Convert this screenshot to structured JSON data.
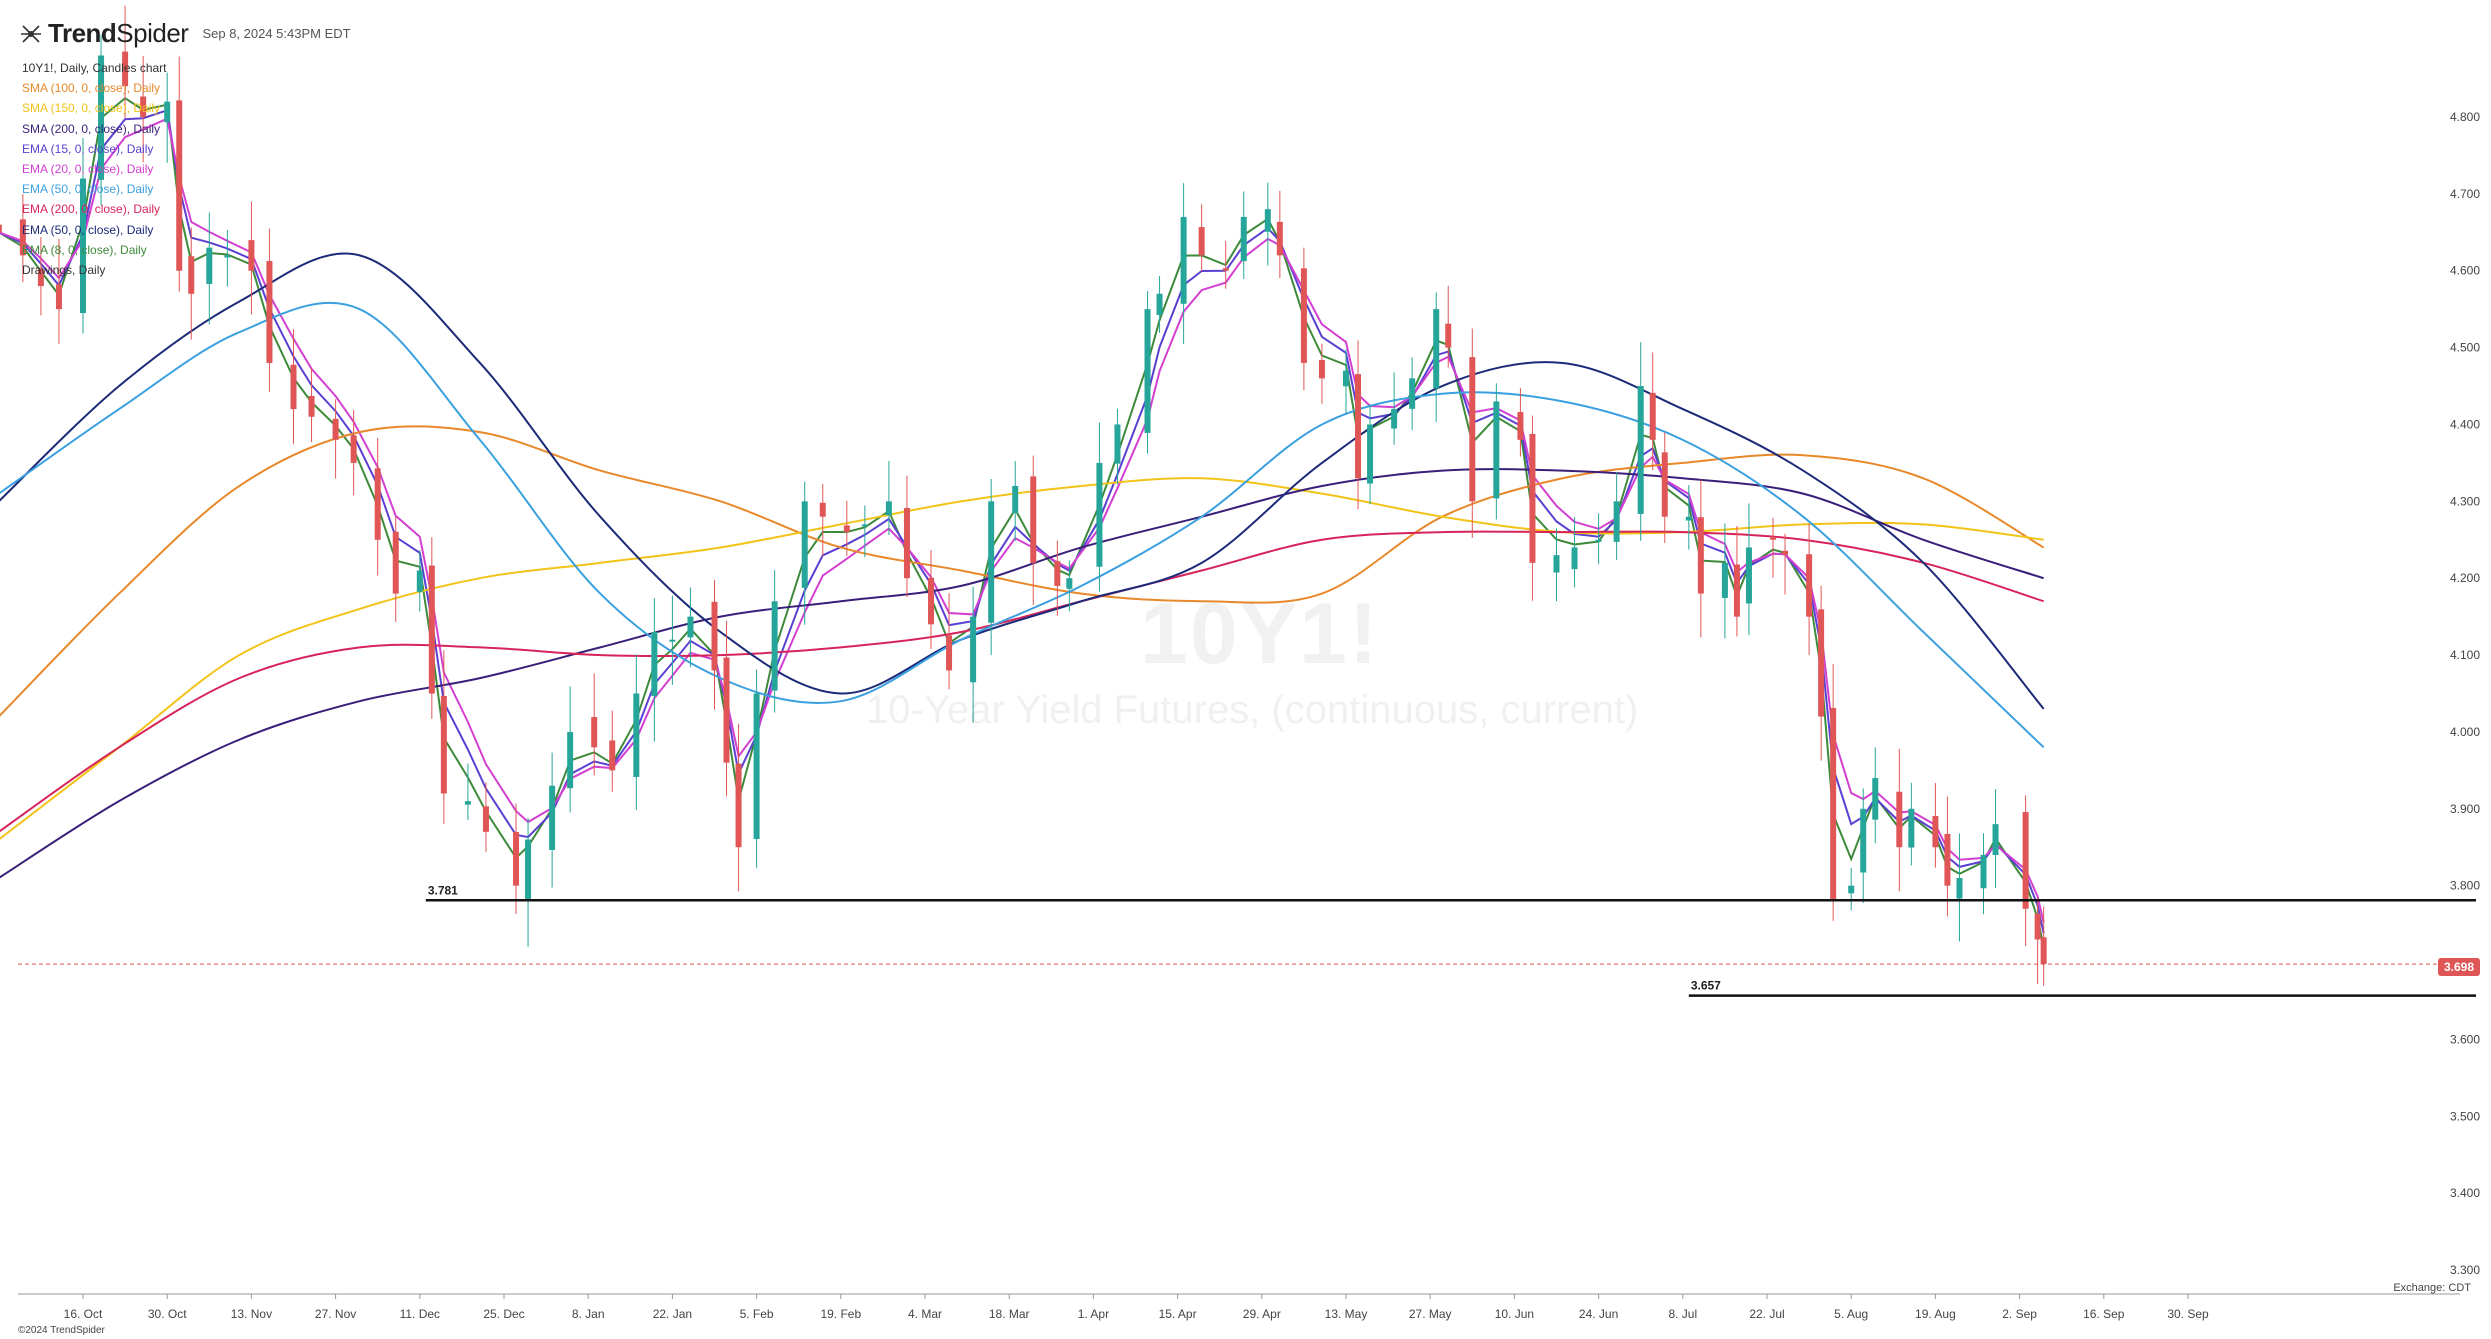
{
  "header": {
    "brand_bold": "Trend",
    "brand_thin": "Spider",
    "timestamp": "Sep 8, 2024 5:43PM EDT"
  },
  "legend": [
    {
      "text": "10Y1!, Daily, Candles chart",
      "color": "#333333"
    },
    {
      "text": "SMA (100, 0, close), Daily",
      "color": "#e8882a"
    },
    {
      "text": "SMA (150, 0, close), Daily",
      "color": "#f2c318"
    },
    {
      "text": "SMA (200, 0, close), Daily",
      "color": "#3a1f7a"
    },
    {
      "text": "EMA (15, 0, close), Daily",
      "color": "#5b3fd1"
    },
    {
      "text": "EMA (20, 0, close), Daily",
      "color": "#d23fd1"
    },
    {
      "text": "EMA (50, 0, close), Daily",
      "color": "#3aa0e0"
    },
    {
      "text": "EMA (200, 0, close), Daily",
      "color": "#d6245a"
    },
    {
      "text": "EMA (50, 0, close), Daily",
      "color": "#1c2a78"
    },
    {
      "text": "EMA (8, 0, close), Daily",
      "color": "#3d8a3a"
    },
    {
      "text": "Drawings, Daily",
      "color": "#333333"
    }
  ],
  "watermark": {
    "symbol": "10Y1!",
    "name": "10-Year Yield Futures, (continuous, current)"
  },
  "footer": {
    "exchange": "Exchange: CDT",
    "copyright": "©2024 TrendSpider"
  },
  "last_price": "3.698",
  "colors": {
    "up": "#26a69a",
    "down": "#e05656",
    "level_line": "#111111",
    "price_line": "#e05656"
  },
  "chart_data": {
    "type": "candlestick",
    "title": "10Y1!, Daily, Candles chart",
    "ylim": [
      3.3,
      4.85
    ],
    "y_ticks": [
      "3.300",
      "3.400",
      "3.500",
      "3.600",
      "3.700",
      "3.800",
      "3.900",
      "4.000",
      "4.100",
      "4.200",
      "4.300",
      "4.400",
      "4.500",
      "4.600",
      "4.700",
      "4.800"
    ],
    "x_ticks": [
      {
        "label": "16. Oct",
        "date": "2023-10-16"
      },
      {
        "label": "30. Oct",
        "date": "2023-10-30"
      },
      {
        "label": "13. Nov",
        "date": "2023-11-13"
      },
      {
        "label": "27. Nov",
        "date": "2023-11-27"
      },
      {
        "label": "11. Dec",
        "date": "2023-12-11"
      },
      {
        "label": "25. Dec",
        "date": "2023-12-25"
      },
      {
        "label": "8. Jan",
        "date": "2024-01-08"
      },
      {
        "label": "22. Jan",
        "date": "2024-01-22"
      },
      {
        "label": "5. Feb",
        "date": "2024-02-05"
      },
      {
        "label": "19. Feb",
        "date": "2024-02-19"
      },
      {
        "label": "4. Mar",
        "date": "2024-03-04"
      },
      {
        "label": "18. Mar",
        "date": "2024-03-18"
      },
      {
        "label": "1. Apr",
        "date": "2024-04-01"
      },
      {
        "label": "15. Apr",
        "date": "2024-04-15"
      },
      {
        "label": "29. Apr",
        "date": "2024-04-29"
      },
      {
        "label": "13. May",
        "date": "2024-05-13"
      },
      {
        "label": "27. May",
        "date": "2024-05-27"
      },
      {
        "label": "10. Jun",
        "date": "2024-06-10"
      },
      {
        "label": "24. Jun",
        "date": "2024-06-24"
      },
      {
        "label": "8. Jul",
        "date": "2024-07-08"
      },
      {
        "label": "22. Jul",
        "date": "2024-07-22"
      },
      {
        "label": "5. Aug",
        "date": "2024-08-05"
      },
      {
        "label": "19. Aug",
        "date": "2024-08-19"
      },
      {
        "label": "2. Sep",
        "date": "2024-09-02"
      },
      {
        "label": "16. Sep",
        "date": "2024-09-16"
      },
      {
        "label": "30. Sep",
        "date": "2024-09-30"
      }
    ],
    "horizontal_levels": [
      {
        "value": 3.781,
        "label": "3.781",
        "from": "2023-12-12"
      },
      {
        "value": 3.657,
        "label": "3.657",
        "from": "2024-07-09"
      }
    ],
    "closes": [
      [
        "2023-10-02",
        4.65
      ],
      [
        "2023-10-06",
        4.62
      ],
      [
        "2023-10-09",
        4.58
      ],
      [
        "2023-10-12",
        4.55
      ],
      [
        "2023-10-16",
        4.72
      ],
      [
        "2023-10-19",
        4.88
      ],
      [
        "2023-10-23",
        4.84
      ],
      [
        "2023-10-26",
        4.8
      ],
      [
        "2023-10-30",
        4.82
      ],
      [
        "2023-11-01",
        4.6
      ],
      [
        "2023-11-03",
        4.57
      ],
      [
        "2023-11-06",
        4.63
      ],
      [
        "2023-11-09",
        4.62
      ],
      [
        "2023-11-13",
        4.6
      ],
      [
        "2023-11-16",
        4.48
      ],
      [
        "2023-11-20",
        4.42
      ],
      [
        "2023-11-23",
        4.41
      ],
      [
        "2023-11-27",
        4.38
      ],
      [
        "2023-11-30",
        4.35
      ],
      [
        "2023-12-04",
        4.25
      ],
      [
        "2023-12-07",
        4.18
      ],
      [
        "2023-12-11",
        4.21
      ],
      [
        "2023-12-13",
        4.05
      ],
      [
        "2023-12-15",
        3.92
      ],
      [
        "2023-12-19",
        3.91
      ],
      [
        "2023-12-22",
        3.87
      ],
      [
        "2023-12-27",
        3.8
      ],
      [
        "2023-12-29",
        3.86
      ],
      [
        "2024-01-02",
        3.93
      ],
      [
        "2024-01-05",
        4.0
      ],
      [
        "2024-01-09",
        3.98
      ],
      [
        "2024-01-12",
        3.95
      ],
      [
        "2024-01-16",
        4.05
      ],
      [
        "2024-01-19",
        4.13
      ],
      [
        "2024-01-22",
        4.12
      ],
      [
        "2024-01-25",
        4.15
      ],
      [
        "2024-01-29",
        4.08
      ],
      [
        "2024-01-31",
        3.96
      ],
      [
        "2024-02-02",
        3.85
      ],
      [
        "2024-02-05",
        4.05
      ],
      [
        "2024-02-08",
        4.17
      ],
      [
        "2024-02-13",
        4.3
      ],
      [
        "2024-02-16",
        4.28
      ],
      [
        "2024-02-20",
        4.26
      ],
      [
        "2024-02-23",
        4.27
      ],
      [
        "2024-02-27",
        4.3
      ],
      [
        "2024-03-01",
        4.2
      ],
      [
        "2024-03-05",
        4.14
      ],
      [
        "2024-03-08",
        4.08
      ],
      [
        "2024-03-12",
        4.15
      ],
      [
        "2024-03-15",
        4.3
      ],
      [
        "2024-03-19",
        4.32
      ],
      [
        "2024-03-22",
        4.22
      ],
      [
        "2024-03-26",
        4.19
      ],
      [
        "2024-03-28",
        4.2
      ],
      [
        "2024-04-02",
        4.35
      ],
      [
        "2024-04-05",
        4.4
      ],
      [
        "2024-04-10",
        4.55
      ],
      [
        "2024-04-12",
        4.57
      ],
      [
        "2024-04-16",
        4.67
      ],
      [
        "2024-04-19",
        4.62
      ],
      [
        "2024-04-23",
        4.6
      ],
      [
        "2024-04-26",
        4.67
      ],
      [
        "2024-04-30",
        4.68
      ],
      [
        "2024-05-02",
        4.62
      ],
      [
        "2024-05-06",
        4.48
      ],
      [
        "2024-05-09",
        4.46
      ],
      [
        "2024-05-13",
        4.47
      ],
      [
        "2024-05-15",
        4.33
      ],
      [
        "2024-05-17",
        4.4
      ],
      [
        "2024-05-21",
        4.42
      ],
      [
        "2024-05-24",
        4.46
      ],
      [
        "2024-05-28",
        4.55
      ],
      [
        "2024-05-30",
        4.5
      ],
      [
        "2024-06-03",
        4.3
      ],
      [
        "2024-06-07",
        4.43
      ],
      [
        "2024-06-11",
        4.38
      ],
      [
        "2024-06-13",
        4.22
      ],
      [
        "2024-06-17",
        4.23
      ],
      [
        "2024-06-20",
        4.24
      ],
      [
        "2024-06-24",
        4.25
      ],
      [
        "2024-06-27",
        4.3
      ],
      [
        "2024-07-01",
        4.45
      ],
      [
        "2024-07-03",
        4.38
      ],
      [
        "2024-07-05",
        4.28
      ],
      [
        "2024-07-09",
        4.28
      ],
      [
        "2024-07-11",
        4.18
      ],
      [
        "2024-07-15",
        4.22
      ],
      [
        "2024-07-17",
        4.15
      ],
      [
        "2024-07-19",
        4.24
      ],
      [
        "2024-07-23",
        4.25
      ],
      [
        "2024-07-25",
        4.23
      ],
      [
        "2024-07-29",
        4.15
      ],
      [
        "2024-07-31",
        4.02
      ],
      [
        "2024-08-02",
        3.78
      ],
      [
        "2024-08-05",
        3.8
      ],
      [
        "2024-08-07",
        3.9
      ],
      [
        "2024-08-09",
        3.94
      ],
      [
        "2024-08-13",
        3.85
      ],
      [
        "2024-08-15",
        3.9
      ],
      [
        "2024-08-19",
        3.85
      ],
      [
        "2024-08-21",
        3.8
      ],
      [
        "2024-08-23",
        3.81
      ],
      [
        "2024-08-27",
        3.84
      ],
      [
        "2024-08-29",
        3.88
      ],
      [
        "2024-09-03",
        3.77
      ],
      [
        "2024-09-05",
        3.73
      ],
      [
        "2024-09-06",
        3.698
      ]
    ],
    "moving_averages": [
      {
        "name": "SMA (100, 0, close), Daily",
        "color": "#e8882a",
        "values": [
          4.02,
          4.18,
          4.32,
          4.39,
          4.39,
          4.34,
          4.3,
          4.24,
          4.21,
          4.18,
          4.17,
          4.18,
          4.28,
          4.33,
          4.35,
          4.36,
          4.33,
          4.24
        ]
      },
      {
        "name": "SMA (150, 0, close), Daily",
        "color": "#f2c318",
        "values": [
          3.86,
          3.98,
          4.1,
          4.16,
          4.2,
          4.22,
          4.24,
          4.27,
          4.3,
          4.32,
          4.33,
          4.31,
          4.28,
          4.26,
          4.26,
          4.27,
          4.27,
          4.25
        ]
      },
      {
        "name": "SMA (200, 0, close), Daily",
        "color": "#3a1f7a",
        "values": [
          3.81,
          3.91,
          3.99,
          4.04,
          4.07,
          4.11,
          4.15,
          4.17,
          4.19,
          4.24,
          4.28,
          4.32,
          4.34,
          4.34,
          4.33,
          4.31,
          4.25,
          4.2
        ]
      },
      {
        "name": "EMA (200, 0, close), Daily",
        "color": "#d6245a",
        "values": [
          3.87,
          3.98,
          4.07,
          4.11,
          4.11,
          4.1,
          4.1,
          4.11,
          4.13,
          4.17,
          4.21,
          4.25,
          4.26,
          4.26,
          4.26,
          4.25,
          4.22,
          4.17
        ]
      },
      {
        "name": "EMA (50, 0, close), Daily",
        "color": "#1c2a78",
        "values": [
          4.3,
          4.45,
          4.56,
          4.62,
          4.48,
          4.28,
          4.13,
          4.05,
          4.12,
          4.17,
          4.22,
          4.35,
          4.45,
          4.48,
          4.42,
          4.34,
          4.22,
          4.03
        ]
      },
      {
        "name": "EMA (50, 0, close), Daily",
        "color": "#3aa0e0",
        "values": [
          4.31,
          4.42,
          4.52,
          4.55,
          4.38,
          4.18,
          4.07,
          4.04,
          4.12,
          4.19,
          4.28,
          4.4,
          4.44,
          4.43,
          4.38,
          4.28,
          4.13,
          3.98
        ]
      }
    ]
  }
}
